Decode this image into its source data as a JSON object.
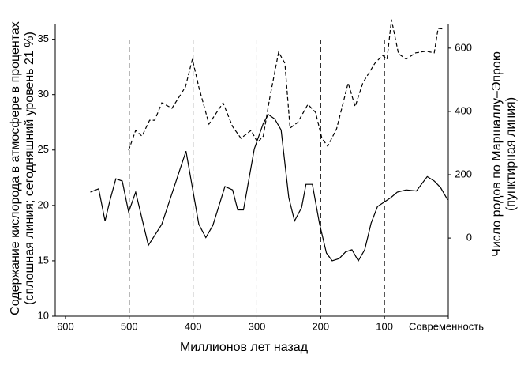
{
  "chart_data": {
    "type": "line",
    "xlabel": "Миллионов лет назад",
    "ylabel": [
      "Содержание кислорода в атмосфере в процентах",
      "(сплошная линия; сегодняшний уровень 21 %)"
    ],
    "y2label": [
      "Число родов по Маршаллу–Эпрою",
      "(пунктирная линия)"
    ],
    "xlim": [
      616,
      0
    ],
    "xticks": [
      600,
      500,
      400,
      300,
      200,
      100,
      {
        "value": 0,
        "label": "Современность"
      }
    ],
    "ylim": [
      10,
      36.4
    ],
    "yticks": [
      10,
      15,
      20,
      25,
      30,
      35
    ],
    "y2lim": [
      -247,
      677
    ],
    "y2ticks": [
      0,
      200,
      400,
      600
    ],
    "vlines": [
      500,
      400,
      300,
      200,
      100
    ],
    "series": [
      {
        "color": "#000000",
        "dash": false,
        "x": [
          561,
          548,
          538,
          530,
          521,
          511,
          501,
          490,
          470,
          449,
          411,
          391,
          380,
          369,
          350,
          338,
          330,
          321,
          304,
          290,
          282,
          272,
          262,
          250,
          241,
          230,
          223,
          213,
          202,
          191,
          182,
          171,
          161,
          151,
          141,
          131,
          121,
          111,
          90,
          80,
          66,
          50,
          33,
          22,
          12,
          1
        ],
        "values": [
          21.2,
          21.5,
          18.6,
          20.5,
          22.4,
          22.2,
          19.4,
          21.2,
          16.4,
          18.3,
          24.9,
          18.3,
          17.1,
          18.2,
          21.7,
          21.4,
          19.6,
          19.6,
          25.1,
          27.4,
          28.2,
          27.8,
          26.8,
          20.7,
          18.6,
          19.8,
          21.9,
          21.9,
          18.4,
          15.7,
          15,
          15.2,
          15.8,
          16,
          15,
          16,
          18.4,
          19.9,
          20.7,
          21.2,
          21.4,
          21.3,
          22.6,
          22.2,
          21.6,
          20.5
        ]
      },
      {
        "color": "#000000",
        "dash": true,
        "axis": "y2",
        "x": [
          501,
          490,
          480,
          468,
          460,
          449,
          433,
          412,
          401,
          391,
          375,
          353,
          338,
          325,
          309,
          299,
          290,
          280,
          266,
          256,
          248,
          236,
          220,
          208,
          198,
          189,
          175,
          157,
          146,
          134,
          115,
          103,
          96,
          89,
          78,
          66,
          51,
          35,
          22,
          16,
          7
        ],
        "values": [
          277,
          340,
          322,
          372,
          372,
          427,
          410,
          477,
          565,
          477,
          360,
          427,
          352,
          315,
          340,
          302,
          322,
          440,
          587,
          552,
          347,
          365,
          422,
          397,
          315,
          290,
          345,
          490,
          415,
          490,
          552,
          577,
          565,
          690,
          582,
          565,
          585,
          590,
          585,
          662,
          660
        ]
      }
    ]
  }
}
